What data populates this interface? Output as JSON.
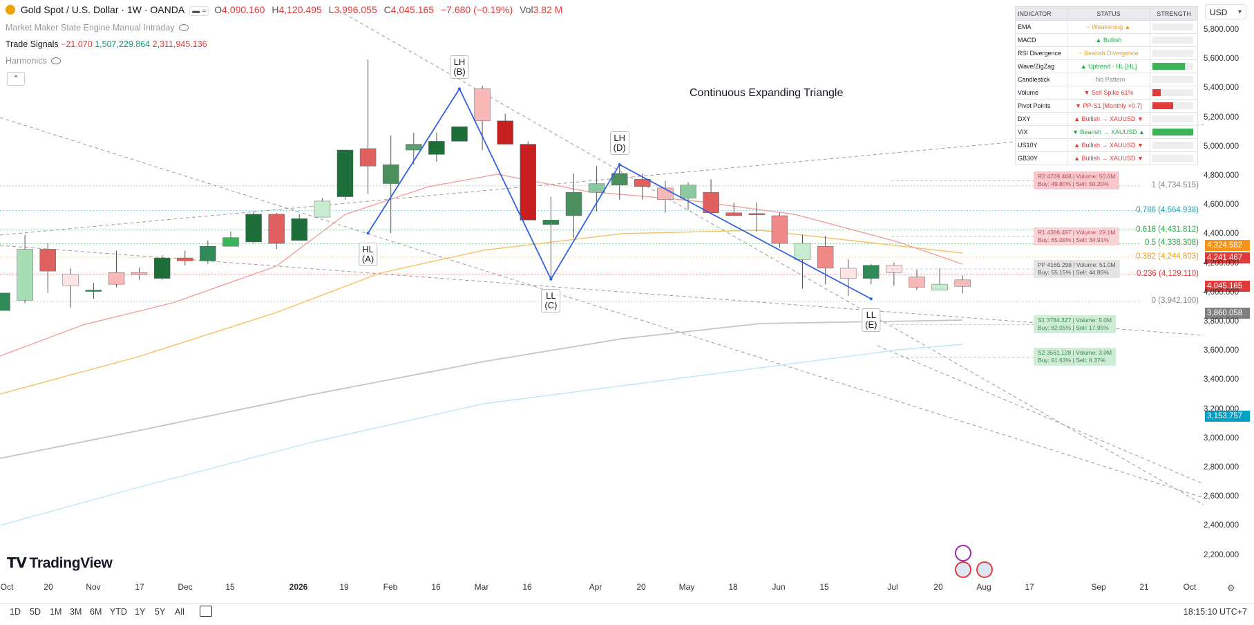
{
  "header": {
    "title": "Gold Spot / U.S. Dollar · 1W · OANDA",
    "o_label": "O",
    "o": "4,090.160",
    "h_label": "H",
    "h": "4,120.495",
    "l_label": "L",
    "l": "3,996.055",
    "c_label": "C",
    "c": "4,045.165",
    "change": "−7.680 (−0.19%)",
    "vol_label": "Vol",
    "vol": "3.82 M"
  },
  "indicators": [
    {
      "name": "Market Maker State Engine Manual Intraday"
    },
    {
      "name": "Trade Signals",
      "v1": "−21.070",
      "v2": "1,507,229.864",
      "v3": "2,311,945.136"
    },
    {
      "name": "Harmonics"
    }
  ],
  "currency": "USD",
  "table": {
    "headers": [
      "INDICATOR",
      "STATUS",
      "STRENGTH"
    ],
    "rows": [
      {
        "name": "EMA",
        "status": "~ Weakening ▲",
        "color": "#f0a000",
        "strength": 0,
        "bar_color": "#cccccc"
      },
      {
        "name": "MACD",
        "status": "▲ Bullish",
        "color": "#22aa44",
        "strength": 0,
        "bar_color": "#cccccc"
      },
      {
        "name": "RSI Divergence",
        "status": "~ Bearish Divergence",
        "color": "#f0a000",
        "strength": 0,
        "bar_color": "#cccccc"
      },
      {
        "name": "Wave/ZigZag",
        "status": "▲ Uptrend · HL [HL]",
        "color": "#22aa44",
        "strength": 0.8,
        "bar_color": "#3cb45a"
      },
      {
        "name": "Candlestick",
        "status": "· No Pattern",
        "color": "#888888",
        "strength": 0,
        "bar_color": "#cccccc"
      },
      {
        "name": "Volume",
        "status": "▼ Sell Spike 61%",
        "color": "#e03a3a",
        "strength": 0.2,
        "bar_color": "#e03a3a"
      },
      {
        "name": "Pivot Points",
        "status": "▼ PP-S1 [Monthly ×0.7]",
        "color": "#e03a3a",
        "strength": 0.5,
        "bar_color": "#e03a3a"
      },
      {
        "name": "DXY",
        "status": "▲ Bullish → XAUUSD ▼",
        "color": "#e03a3a",
        "strength": 0,
        "bar_color": "#cccccc"
      },
      {
        "name": "VIX",
        "status": "▼ Bearish → XAUUSD ▲",
        "color": "#22aa44",
        "strength": 1.0,
        "bar_color": "#3cb45a"
      },
      {
        "name": "US10Y",
        "status": "▲ Bullish → XAUUSD ▼",
        "color": "#e03a3a",
        "strength": 0,
        "bar_color": "#cccccc"
      },
      {
        "name": "GB30Y",
        "status": "▲ Bullish → XAUUSD ▼",
        "color": "#e03a3a",
        "strength": 0,
        "bar_color": "#cccccc"
      }
    ]
  },
  "pivots": [
    {
      "line1": "R2 4769.468 | Volume: 50.6M",
      "line2": "Buy: 49.80% | Sell: 50.20%",
      "price": 4770,
      "bg": "#f8c8cc",
      "fg": "#b05058"
    },
    {
      "line1": "R1 4388.497 | Volume: 29.1M",
      "line2": "Buy: 65.09% | Sell: 34.91%",
      "price": 4388,
      "bg": "#f8d2d4",
      "fg": "#b05058"
    },
    {
      "line1": "PP 4165.298 | Volume: 51.0M",
      "line2": "Buy: 55.15% | Sell: 44.85%",
      "price": 4165,
      "bg": "#e4e4e4",
      "fg": "#555555"
    },
    {
      "line1": "S1 3784.327 | Volume: 5.0M",
      "line2": "Buy: 82.05% | Sell: 17.95%",
      "price": 3784,
      "bg": "#cfecd6",
      "fg": "#3c8a4e"
    },
    {
      "line1": "S2 3561.128 | Volume: 3.0M",
      "line2": "Buy: 91.63% | Sell: 8.37%",
      "price": 3561,
      "bg": "#cfecd6",
      "fg": "#3c8a4e"
    }
  ],
  "fib_levels": [
    {
      "label": "1 (4,734.515)",
      "price": 4734.515,
      "color": "#888888"
    },
    {
      "label": "0.786 (4,564.938)",
      "price": 4564.938,
      "color": "#17a2b8"
    },
    {
      "label": "0.618 (4,431.812)",
      "price": 4431.812,
      "color": "#22aa44"
    },
    {
      "label": "0.5 (4,338.308)",
      "price": 4338.308,
      "color": "#22aa44"
    },
    {
      "label": "0.382 (4,244.803)",
      "price": 4244.803,
      "color": "#f0a000"
    },
    {
      "label": "0.236 (4,129.110)",
      "price": 4129.11,
      "color": "#e03a3a"
    },
    {
      "label": "0 (3,942.100)",
      "price": 3942.1,
      "color": "#888888"
    }
  ],
  "price_tags": [
    {
      "label": "4,324.582",
      "price": 4324.582,
      "color": "#f7931a"
    },
    {
      "label": "4,241.467",
      "price": 4241.467,
      "color": "#e03a3a"
    },
    {
      "label": "4,045.165",
      "price": 4045.165,
      "color": "#e03a3a"
    },
    {
      "label": "3,860.058",
      "price": 3860.058,
      "color": "#808080"
    },
    {
      "label": "3,153.757",
      "price": 3153.757,
      "color": "#00a0c8"
    }
  ],
  "pattern_title": "Continuous Expanding Triangle",
  "waves": [
    {
      "top": "HL",
      "bottom": "(A)",
      "idx": 16,
      "price": 4410,
      "pos": "below"
    },
    {
      "top": "LH",
      "bottom": "(B)",
      "idx": 20,
      "price": 5400,
      "pos": "above"
    },
    {
      "top": "LL",
      "bottom": "(C)",
      "idx": 24,
      "price": 4095,
      "pos": "below"
    },
    {
      "top": "LH",
      "bottom": "(D)",
      "idx": 27,
      "price": 4880,
      "pos": "above"
    },
    {
      "top": "LL",
      "bottom": "(E)",
      "idx": 38,
      "price": 3960,
      "pos": "below"
    }
  ],
  "x_axis": [
    {
      "label": "Oct",
      "x": 0
    },
    {
      "label": "20",
      "x": 70
    },
    {
      "label": "Nov",
      "x": 135
    },
    {
      "label": "17",
      "x": 202
    },
    {
      "label": "Dec",
      "x": 268
    },
    {
      "label": "15",
      "x": 333
    },
    {
      "label": "2026",
      "x": 432
    },
    {
      "label": "19",
      "x": 498
    },
    {
      "label": "Feb",
      "x": 565
    },
    {
      "label": "16",
      "x": 631
    },
    {
      "label": "Mar",
      "x": 697
    },
    {
      "label": "16",
      "x": 763
    },
    {
      "label": "Apr",
      "x": 862
    },
    {
      "label": "20",
      "x": 928
    },
    {
      "label": "May",
      "x": 994
    },
    {
      "label": "18",
      "x": 1061
    },
    {
      "label": "Jun",
      "x": 1127
    },
    {
      "label": "15",
      "x": 1193
    },
    {
      "label": "Jul",
      "x": 1292
    },
    {
      "label": "20",
      "x": 1358
    },
    {
      "label": "Aug",
      "x": 1424
    },
    {
      "label": "17",
      "x": 1490
    },
    {
      "label": "Sep",
      "x": 1590
    },
    {
      "label": "21",
      "x": 1656
    },
    {
      "label": "Oct",
      "x": 1722
    }
  ],
  "ranges": [
    "1D",
    "5D",
    "1M",
    "3M",
    "6M",
    "YTD",
    "1Y",
    "5Y",
    "All"
  ],
  "clock": "18:15:10 UTC+7",
  "brand": "TradingView",
  "chart_data": {
    "type": "candlestick",
    "title": "Gold Spot / U.S. Dollar · 1W · OANDA",
    "ylim": [
      2100,
      5900
    ],
    "y_ticks": [
      5800,
      5600,
      5400,
      5200,
      5000,
      4800,
      4600,
      4400,
      4200,
      4000,
      3800,
      3600,
      3400,
      3200,
      3000,
      2800,
      2600,
      2400,
      2200
    ],
    "candles": [
      {
        "o": 3880,
        "h": 4000,
        "l": 3880,
        "c": 4000,
        "c_": "#2e8b57"
      },
      {
        "o": 3950,
        "h": 4400,
        "l": 3930,
        "c": 4300,
        "c_": "#a8dcb4"
      },
      {
        "o": 4300,
        "h": 4340,
        "l": 4000,
        "c": 4150,
        "c_": "#e06060"
      },
      {
        "o": 4130,
        "h": 4170,
        "l": 3900,
        "c": 4050,
        "c_": "#fde4e4"
      },
      {
        "o": 4020,
        "h": 4070,
        "l": 3960,
        "c": 4020,
        "c_": "#2e8b57"
      },
      {
        "o": 4060,
        "h": 4290,
        "l": 4040,
        "c": 4140,
        "c_": "#f8b8b8"
      },
      {
        "o": 4125,
        "h": 4175,
        "l": 4090,
        "c": 4140,
        "c_": "#f8b8b8"
      },
      {
        "o": 4100,
        "h": 4260,
        "l": 4090,
        "c": 4240,
        "c_": "#1e6e3a"
      },
      {
        "o": 4220,
        "h": 4290,
        "l": 4190,
        "c": 4240,
        "c_": "#e06060"
      },
      {
        "o": 4220,
        "h": 4360,
        "l": 4200,
        "c": 4320,
        "c_": "#2e8b57"
      },
      {
        "o": 4320,
        "h": 4420,
        "l": 4320,
        "c": 4380,
        "c_": "#3cb45a"
      },
      {
        "o": 4350,
        "h": 4560,
        "l": 4340,
        "c": 4540,
        "c_": "#1e6e3a"
      },
      {
        "o": 4540,
        "h": 4550,
        "l": 4300,
        "c": 4340,
        "c_": "#e06060"
      },
      {
        "o": 4360,
        "h": 4540,
        "l": 4360,
        "c": 4510,
        "c_": "#1e6e3a"
      },
      {
        "o": 4520,
        "h": 4650,
        "l": 4520,
        "c": 4630,
        "c_": "#c8ecd0"
      },
      {
        "o": 4660,
        "h": 4980,
        "l": 4640,
        "c": 4980,
        "c_": "#1e6e3a"
      },
      {
        "o": 4990,
        "h": 5600,
        "l": 4680,
        "c": 4870,
        "c_": "#e06060"
      },
      {
        "o": 4750,
        "h": 5080,
        "l": 4410,
        "c": 4880,
        "c_": "#4a8e5e"
      },
      {
        "o": 4980,
        "h": 5100,
        "l": 4880,
        "c": 5020,
        "c_": "#5aa070"
      },
      {
        "o": 4950,
        "h": 5100,
        "l": 4900,
        "c": 5040,
        "c_": "#1e6e3a"
      },
      {
        "o": 5040,
        "h": 5140,
        "l": 5040,
        "c": 5140,
        "c_": "#1e6e3a"
      },
      {
        "o": 5400,
        "h": 5420,
        "l": 4980,
        "c": 5180,
        "c_": "#f8b8b8"
      },
      {
        "o": 5180,
        "h": 5230,
        "l": 5020,
        "c": 5020,
        "c_": "#c82020"
      },
      {
        "o": 5020,
        "h": 5040,
        "l": 4500,
        "c": 4500,
        "c_": "#c82020"
      },
      {
        "o": 4470,
        "h": 4660,
        "l": 4095,
        "c": 4500,
        "c_": "#2e8b57"
      },
      {
        "o": 4530,
        "h": 4820,
        "l": 4380,
        "c": 4690,
        "c_": "#4a8e5e"
      },
      {
        "o": 4750,
        "h": 4870,
        "l": 4560,
        "c": 4690,
        "c_": "#8cc8a0"
      },
      {
        "o": 4740,
        "h": 4880,
        "l": 4640,
        "c": 4820,
        "c_": "#4a8e5e"
      },
      {
        "o": 4780,
        "h": 4820,
        "l": 4640,
        "c": 4730,
        "c_": "#e06060"
      },
      {
        "o": 4720,
        "h": 4770,
        "l": 4550,
        "c": 4640,
        "c_": "#f8b8b8"
      },
      {
        "o": 4650,
        "h": 4760,
        "l": 4570,
        "c": 4740,
        "c_": "#8cc8a0"
      },
      {
        "o": 4690,
        "h": 4780,
        "l": 4540,
        "c": 4550,
        "c_": "#e06060"
      },
      {
        "o": 4550,
        "h": 4620,
        "l": 4530,
        "c": 4530,
        "c_": "#e06060"
      },
      {
        "o": 4545,
        "h": 4620,
        "l": 4420,
        "c": 4540,
        "c_": "#e06060"
      },
      {
        "o": 4530,
        "h": 4550,
        "l": 4310,
        "c": 4340,
        "c_": "#f08888"
      },
      {
        "o": 4340,
        "h": 4400,
        "l": 4030,
        "c": 4230,
        "c_": "#c8ecd0"
      },
      {
        "o": 4320,
        "h": 4390,
        "l": 4060,
        "c": 4170,
        "c_": "#f08888"
      },
      {
        "o": 4170,
        "h": 4230,
        "l": 3980,
        "c": 4100,
        "c_": "#fde4e4"
      },
      {
        "o": 4100,
        "h": 4200,
        "l": 4060,
        "c": 4190,
        "c_": "#2e8b57"
      },
      {
        "o": 4190,
        "h": 4210,
        "l": 4050,
        "c": 4140,
        "c_": "#fde4e4"
      },
      {
        "o": 4110,
        "h": 4160,
        "l": 4020,
        "c": 4040,
        "c_": "#f8b8b8"
      },
      {
        "o": 4060,
        "h": 4170,
        "l": 4020,
        "c": 4020,
        "c_": "#c8ecd0"
      },
      {
        "o": 4090,
        "h": 4120,
        "l": 3996,
        "c": 4045,
        "c_": "#f8b8b8"
      }
    ]
  }
}
